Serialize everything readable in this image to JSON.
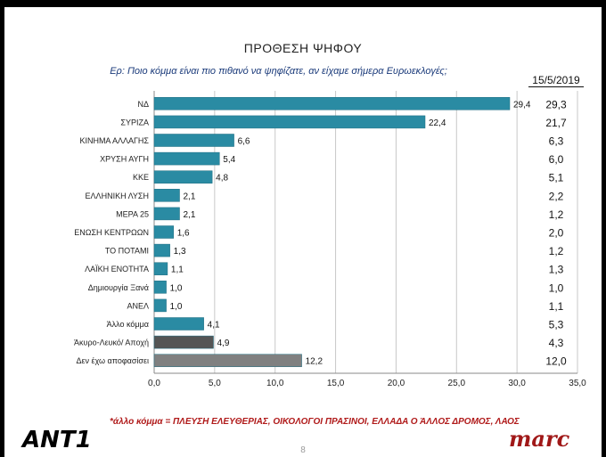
{
  "header": {
    "title": "ΠΡΟΘΕΣΗ ΨΗΦΟΥ",
    "question": "Ερ: Ποιο κόμμα είναι πιο πιθανό να ψηφίζατε, αν είχαμε σήμερα Ευρωεκλογές;",
    "comparison_date": "15/5/2019"
  },
  "chart_data": {
    "type": "bar",
    "orientation": "horizontal",
    "categories": [
      "ΝΔ",
      "ΣΥΡΙΖΑ",
      "ΚΙΝΗΜΑ ΑΛΛΑΓΗΣ",
      "ΧΡΥΣΗ ΑΥΓΗ",
      "ΚΚΕ",
      "ΕΛΛΗΝΙΚΗ ΛΥΣΗ",
      "ΜΕΡΑ 25",
      "ΕΝΩΣΗ ΚΕΝΤΡΩΩΝ",
      "ΤΟ ΠΟΤΑΜΙ",
      "ΛΑΪΚΗ ΕΝΟΤΗΤΑ",
      "Δημιουργία Ξανά",
      "ΑΝΕΛ",
      "Άλλο κόμμα",
      "Άκυρο-Λευκό/ Αποχή",
      "Δεν έχω αποφασίσει"
    ],
    "values": [
      29.4,
      22.4,
      6.6,
      5.4,
      4.8,
      2.1,
      2.1,
      1.6,
      1.3,
      1.1,
      1.0,
      1.0,
      4.1,
      4.9,
      12.2
    ],
    "value_labels": [
      "29,4",
      "22,4",
      "6,6",
      "5,4",
      "4,8",
      "2,1",
      "2,1",
      "1,6",
      "1,3",
      "1,1",
      "1,0",
      "1,0",
      "4,1",
      "4,9",
      "12,2"
    ],
    "comparison_label": "15/5/2019",
    "comparison_values": [
      "29,3",
      "21,7",
      "6,3",
      "6,0",
      "5,1",
      "2,2",
      "1,2",
      "2,0",
      "1,2",
      "1,3",
      "1,0",
      "1,1",
      "5,3",
      "4,3",
      "12,0"
    ],
    "bar_colors": [
      "#2a8ba3",
      "#2a8ba3",
      "#2a8ba3",
      "#2a8ba3",
      "#2a8ba3",
      "#2a8ba3",
      "#2a8ba3",
      "#2a8ba3",
      "#2a8ba3",
      "#2a8ba3",
      "#2a8ba3",
      "#2a8ba3",
      "#2a8ba3",
      "#555555",
      "#808080"
    ],
    "xlim": [
      0,
      35
    ],
    "x_ticks": [
      "0,0",
      "5,0",
      "10,0",
      "15,0",
      "20,0",
      "25,0",
      "30,0",
      "35,0"
    ],
    "grid": "vertical"
  },
  "footer": {
    "note": "*άλλο κόμμα = ΠΛΕΥΣΗ ΕΛΕΥΘΕΡΙΑΣ, ΟΙΚΟΛΟΓΟΙ ΠΡΑΣΙΝΟΙ, ΕΛΛΑΔΑ Ο ΆΛΛΟΣ ΔΡΟΜΟΣ, ΛΑΟΣ",
    "page_number": "8",
    "logo_left": "ANT1",
    "logo_right": "marc"
  }
}
